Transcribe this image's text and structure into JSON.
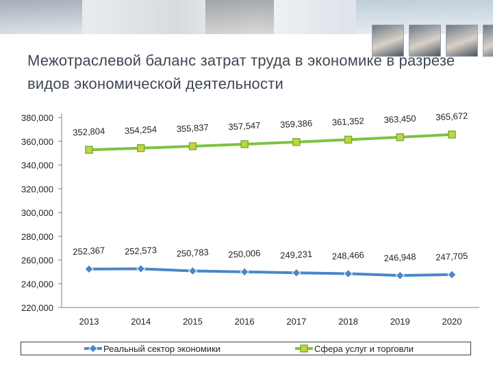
{
  "title": "Межотраслевой баланс затрат труда в экономике в разрезе видов экономической деятельности",
  "chart_data": {
    "type": "line",
    "x": [
      "2013",
      "2014",
      "2015",
      "2016",
      "2017",
      "2018",
      "2019",
      "2020"
    ],
    "ylim": [
      220000,
      380000
    ],
    "yticks": [
      "220,000",
      "240,000",
      "260,000",
      "280,000",
      "300,000",
      "320,000",
      "340,000",
      "360,000",
      "380,000"
    ],
    "grid": false,
    "legend_position": "bottom",
    "series": [
      {
        "name": "Реальный сектор экономики",
        "color": "#4a86c8",
        "marker": "diamond",
        "values": [
          252367,
          252573,
          250783,
          250006,
          249231,
          248466,
          246948,
          247705
        ],
        "labels": [
          "252,367",
          "252,573",
          "250,783",
          "250,006",
          "249,231",
          "248,466",
          "246,948",
          "247,705"
        ]
      },
      {
        "name": "Сфера услуг и торговли",
        "color": "#7cc242",
        "marker": "square",
        "values": [
          352804,
          354254,
          355837,
          357547,
          359386,
          361352,
          363450,
          365672
        ],
        "labels": [
          "352,804",
          "354,254",
          "355,837",
          "357,547",
          "359,386",
          "361,352",
          "363,450",
          "365,672"
        ]
      }
    ]
  }
}
